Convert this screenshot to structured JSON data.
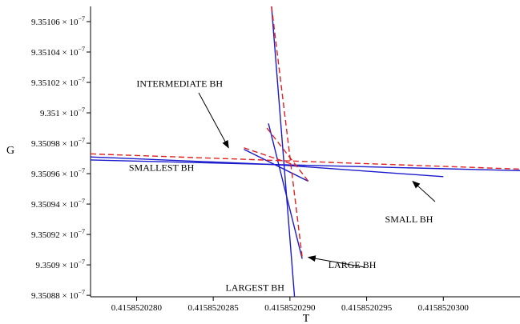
{
  "chart_data": {
    "type": "line",
    "title": "",
    "xlabel": "T",
    "ylabel": "G",
    "xlim": [
      0.4158520277,
      0.4158520305
    ],
    "ylim": [
      9.350879e-07,
      9.35107e-07
    ],
    "grid": false,
    "x_ticks": [
      {
        "value": 0.415852028,
        "label": "0.4158520280"
      },
      {
        "value": 0.4158520285,
        "label": "0.4158520285"
      },
      {
        "value": 0.415852029,
        "label": "0.4158520290"
      },
      {
        "value": 0.4158520295,
        "label": "0.4158520295"
      },
      {
        "value": 0.41585203,
        "label": "0.4158520300"
      }
    ],
    "y_ticks": [
      {
        "value": 9.35088e-07,
        "mantissa": "9.35088",
        "times": "×",
        "base": "10",
        "exp": "−7"
      },
      {
        "value": 9.3509e-07,
        "mantissa": "9.3509",
        "times": "×",
        "base": "10",
        "exp": "−7"
      },
      {
        "value": 9.35092e-07,
        "mantissa": "9.35092",
        "times": "×",
        "base": "10",
        "exp": "−7"
      },
      {
        "value": 9.35094e-07,
        "mantissa": "9.35094",
        "times": "×",
        "base": "10",
        "exp": "−7"
      },
      {
        "value": 9.35096e-07,
        "mantissa": "9.35096",
        "times": "×",
        "base": "10",
        "exp": "−7"
      },
      {
        "value": 9.35098e-07,
        "mantissa": "9.35098",
        "times": "×",
        "base": "10",
        "exp": "−7"
      },
      {
        "value": 9.351e-07,
        "mantissa": "9.351",
        "times": "×",
        "base": "10",
        "exp": "−7"
      },
      {
        "value": 9.35102e-07,
        "mantissa": "9.35102",
        "times": "×",
        "base": "10",
        "exp": "−7"
      },
      {
        "value": 9.35104e-07,
        "mantissa": "9.35104",
        "times": "×",
        "base": "10",
        "exp": "−7"
      },
      {
        "value": 9.35106e-07,
        "mantissa": "9.35106",
        "times": "×",
        "base": "10",
        "exp": "−7"
      }
    ],
    "series": [
      {
        "color": "#1a1acc",
        "dash": "solid",
        "segments": [
          [
            [
              0.4158520277,
              9.350971e-07
            ],
            [
              0.4158520289,
              9.350966e-07
            ]
          ],
          [
            [
              0.4158520289,
              9.350966e-07
            ],
            [
              0.4158520305,
              9.350962e-07
            ]
          ],
          [
            [
              0.4158520277,
              9.350969e-07
            ],
            [
              0.4158520289,
              9.350966e-07
            ]
          ],
          [
            [
              0.4158520289,
              9.350966e-07
            ],
            [
              0.41585203,
              9.350958e-07
            ]
          ],
          [
            [
              0.41585202888,
              9.35107e-07
            ],
            [
              0.41585202903,
              9.350879e-07
            ]
          ],
          [
            [
              0.41585202886,
              9.350993e-07
            ],
            [
              0.41585202908,
              9.350904e-07
            ]
          ],
          [
            [
              0.4158520287,
              9.350976e-07
            ],
            [
              0.41585202912,
              9.350955e-07
            ]
          ]
        ]
      },
      {
        "color": "#e02020",
        "dash": "dashed",
        "segments": [
          [
            [
              0.4158520277,
              9.350973e-07
            ],
            [
              0.4158520305,
              9.350963e-07
            ]
          ],
          [
            [
              0.41585202888,
              9.35107e-07
            ],
            [
              0.41585202908,
              9.350905e-07
            ]
          ],
          [
            [
              0.4158520287,
              9.350977e-07
            ],
            [
              0.41585202905,
              9.350965e-07
            ]
          ],
          [
            [
              0.41585202885,
              9.35099e-07
            ],
            [
              0.41585202912,
              9.350955e-07
            ]
          ]
        ]
      }
    ],
    "annotations": [
      {
        "text": "INTERMEDIATE BH",
        "x": 0.415852028,
        "y": 9.351017e-07,
        "arrow_to": [
          0.4158520286,
          9.350977e-07
        ]
      },
      {
        "text": "SMALLEST BH",
        "x": 0.41585202795,
        "y": 9.350962e-07,
        "arrow_to": null
      },
      {
        "text": "SMALL BH",
        "x": 0.41585202962,
        "y": 9.350928e-07,
        "arrow_to": [
          0.4158520298,
          9.350955e-07
        ]
      },
      {
        "text": "LARGE BH",
        "x": 0.41585202925,
        "y": 9.350898e-07,
        "arrow_to": [
          0.41585202912,
          9.350905e-07
        ]
      },
      {
        "text": "LARGEST BH",
        "x": 0.41585202858,
        "y": 9.350883e-07,
        "arrow_to": null
      }
    ]
  }
}
